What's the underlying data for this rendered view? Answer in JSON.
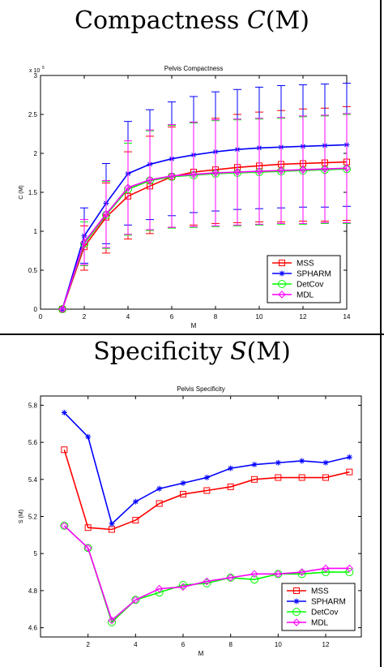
{
  "headings": {
    "top": {
      "text": "Compactness ",
      "symbol": "C",
      "arg": "(M)"
    },
    "bottom": {
      "text": "Specificity ",
      "symbol": "S",
      "arg": "(M)"
    }
  },
  "colors": {
    "MSS": "#ff0000",
    "SPHARM": "#0000ff",
    "DetCov": "#00ff00",
    "MDL": "#ff00ff",
    "frame": "#000000"
  },
  "chart_data": [
    {
      "type": "line",
      "title": "Pelvis Compactness",
      "xlabel": "M",
      "ylabel": "C (M)",
      "y_multiplier_label": "x 10",
      "y_multiplier_exponent": "5",
      "xlim": [
        0,
        14
      ],
      "ylim": [
        0,
        3
      ],
      "xticks": [
        0,
        2,
        4,
        6,
        8,
        10,
        12,
        14
      ],
      "yticks": [
        0,
        0.5,
        1,
        1.5,
        2,
        2.5,
        3
      ],
      "ytick_labels": [
        "0",
        "0.5",
        "1",
        "1.5",
        "2",
        "2.5",
        "3"
      ],
      "grid": false,
      "legend_position": "lower-right",
      "x": [
        1,
        2,
        3,
        4,
        5,
        6,
        7,
        8,
        9,
        10,
        11,
        12,
        13,
        14
      ],
      "series": [
        {
          "name": "MSS",
          "color": "#ff0000",
          "marker": "square",
          "values": [
            0,
            0.8,
            1.18,
            1.45,
            1.58,
            1.7,
            1.76,
            1.79,
            1.82,
            1.84,
            1.86,
            1.87,
            1.88,
            1.89
          ],
          "err_low": [
            0,
            0.5,
            0.72,
            0.9,
            0.97,
            1.05,
            1.08,
            1.1,
            1.11,
            1.12,
            1.12,
            1.13,
            1.13,
            1.14
          ],
          "err_high": [
            0,
            1.07,
            1.62,
            2.02,
            2.22,
            2.34,
            2.4,
            2.45,
            2.5,
            2.53,
            2.55,
            2.57,
            2.58,
            2.6
          ]
        },
        {
          "name": "SPHARM",
          "color": "#0000ff",
          "marker": "star",
          "values": [
            0,
            0.94,
            1.36,
            1.74,
            1.86,
            1.93,
            1.98,
            2.02,
            2.05,
            2.07,
            2.08,
            2.09,
            2.1,
            2.11
          ],
          "err_low": [
            0,
            0.59,
            0.84,
            1.08,
            1.15,
            1.2,
            1.24,
            1.26,
            1.28,
            1.29,
            1.3,
            1.31,
            1.31,
            1.32
          ],
          "err_high": [
            0,
            1.3,
            1.87,
            2.41,
            2.56,
            2.66,
            2.73,
            2.79,
            2.82,
            2.85,
            2.87,
            2.88,
            2.89,
            2.9
          ]
        },
        {
          "name": "DetCov",
          "color": "#00ff00",
          "marker": "circle",
          "values": [
            0,
            0.84,
            1.21,
            1.54,
            1.65,
            1.7,
            1.72,
            1.74,
            1.75,
            1.76,
            1.77,
            1.78,
            1.79,
            1.8
          ],
          "err_low": [
            0,
            0.56,
            0.78,
            0.95,
            1.01,
            1.04,
            1.05,
            1.06,
            1.07,
            1.08,
            1.09,
            1.09,
            1.1,
            1.1
          ],
          "err_high": [
            0,
            1.12,
            1.64,
            2.13,
            2.29,
            2.36,
            2.39,
            2.42,
            2.43,
            2.44,
            2.45,
            2.47,
            2.48,
            2.5
          ]
        },
        {
          "name": "MDL",
          "color": "#ff00ff",
          "marker": "diamond",
          "values": [
            0,
            0.86,
            1.22,
            1.56,
            1.66,
            1.71,
            1.73,
            1.75,
            1.76,
            1.77,
            1.78,
            1.79,
            1.8,
            1.81
          ],
          "err_low": [
            0,
            0.57,
            0.79,
            0.96,
            1.02,
            1.05,
            1.06,
            1.07,
            1.08,
            1.09,
            1.1,
            1.1,
            1.11,
            1.11
          ],
          "err_high": [
            0,
            1.15,
            1.65,
            2.16,
            2.3,
            2.37,
            2.4,
            2.43,
            2.44,
            2.45,
            2.46,
            2.48,
            2.49,
            2.51
          ]
        }
      ]
    },
    {
      "type": "line",
      "title": "Pelvis Specificity",
      "xlabel": "M",
      "ylabel": "S (M)",
      "xlim": [
        0,
        13.5
      ],
      "ylim": [
        4.55,
        5.85
      ],
      "xticks": [
        2,
        4,
        6,
        8,
        10,
        12
      ],
      "yticks": [
        4.6,
        4.8,
        5,
        5.2,
        5.4,
        5.6,
        5.8
      ],
      "ytick_labels": [
        "4.6",
        "4.8",
        "5",
        "5.2",
        "5.4",
        "5.6",
        "5.8"
      ],
      "grid": false,
      "legend_position": "lower-right",
      "x": [
        1,
        2,
        3,
        4,
        5,
        6,
        7,
        8,
        9,
        10,
        11,
        12,
        13
      ],
      "series": [
        {
          "name": "MSS",
          "color": "#ff0000",
          "marker": "square",
          "values": [
            5.56,
            5.14,
            5.13,
            5.18,
            5.27,
            5.32,
            5.34,
            5.36,
            5.4,
            5.41,
            5.41,
            5.41,
            5.44
          ]
        },
        {
          "name": "SPHARM",
          "color": "#0000ff",
          "marker": "star",
          "values": [
            5.76,
            5.63,
            5.16,
            5.28,
            5.35,
            5.38,
            5.41,
            5.46,
            5.48,
            5.49,
            5.5,
            5.49,
            5.52
          ]
        },
        {
          "name": "DetCov",
          "color": "#00ff00",
          "marker": "circle",
          "values": [
            5.15,
            5.03,
            4.63,
            4.75,
            4.79,
            4.83,
            4.84,
            4.87,
            4.86,
            4.89,
            4.89,
            4.9,
            4.9
          ]
        },
        {
          "name": "MDL",
          "color": "#ff00ff",
          "marker": "diamond",
          "values": [
            5.15,
            5.03,
            4.64,
            4.75,
            4.81,
            4.82,
            4.85,
            4.87,
            4.89,
            4.89,
            4.9,
            4.92,
            4.92
          ]
        }
      ]
    }
  ]
}
